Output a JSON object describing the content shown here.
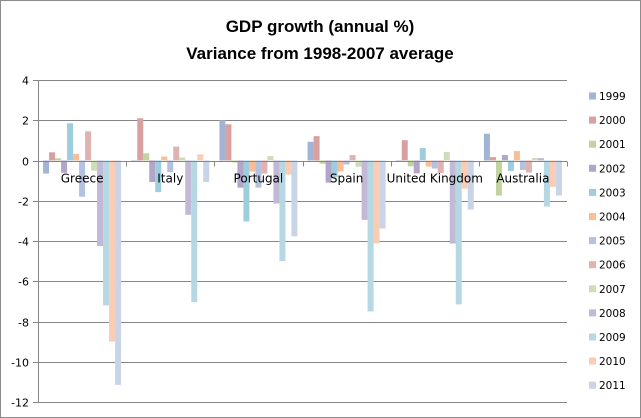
{
  "chart_data": {
    "type": "bar",
    "title": "GDP growth (annual %)",
    "subtitle": "Variance from 1998-2007 average",
    "xlabel": "",
    "ylabel": "",
    "ylim": [
      -12,
      4
    ],
    "yticks": [
      4,
      2,
      0,
      -2,
      -4,
      -6,
      -8,
      -10,
      -12
    ],
    "grid": true,
    "legend_position": "right",
    "categories": [
      "Greece",
      "Italy",
      "Portugal",
      "Spain",
      "United Kingdom",
      "Australia"
    ],
    "series": [
      {
        "name": "1999",
        "color": "#a1b4d6",
        "values": [
          -0.65,
          -0.05,
          2.0,
          0.93,
          -0.05,
          1.33
        ]
      },
      {
        "name": "2000",
        "color": "#d9a0a0",
        "values": [
          0.41,
          2.1,
          1.8,
          1.21,
          1.01,
          0.17
        ]
      },
      {
        "name": "2001",
        "color": "#c1d3a0",
        "values": [
          0.11,
          0.36,
          -0.1,
          -0.16,
          -0.29,
          -1.74
        ]
      },
      {
        "name": "2002",
        "color": "#b1a6c8",
        "values": [
          -0.61,
          -1.07,
          -1.35,
          -1.1,
          -0.64,
          0.27
        ]
      },
      {
        "name": "2003",
        "color": "#9ecddd",
        "values": [
          1.85,
          -1.57,
          -3.03,
          -0.83,
          0.62,
          -0.52
        ]
      },
      {
        "name": "2004",
        "color": "#f9be98",
        "values": [
          0.33,
          0.2,
          -0.55,
          -0.55,
          -0.3,
          0.47
        ]
      },
      {
        "name": "2005",
        "color": "#b4c2e0",
        "values": [
          -1.8,
          -0.58,
          -1.35,
          -0.2,
          -0.4,
          -0.47
        ]
      },
      {
        "name": "2006",
        "color": "#e0b3b3",
        "values": [
          1.45,
          0.69,
          -0.65,
          0.27,
          -0.62,
          -0.6
        ]
      },
      {
        "name": "2007",
        "color": "#ccddb8",
        "values": [
          -0.51,
          0.15,
          0.22,
          -0.31,
          0.42,
          0.12
        ]
      },
      {
        "name": "2008",
        "color": "#c2b9d6",
        "values": [
          -4.25,
          -2.7,
          -2.14,
          -2.95,
          -4.13,
          0.12
        ]
      },
      {
        "name": "2009",
        "color": "#b5d8e3",
        "values": [
          -7.2,
          -7.03,
          -5.0,
          -7.5,
          -7.15,
          -2.29
        ]
      },
      {
        "name": "2010",
        "color": "#f9cdb5",
        "values": [
          -9.0,
          0.31,
          -0.7,
          -4.12,
          -1.4,
          -1.31
        ]
      },
      {
        "name": "2011",
        "color": "#c9d4e6",
        "values": [
          -11.15,
          -1.07,
          -3.77,
          -3.38,
          -2.44,
          -1.74
        ]
      }
    ]
  }
}
